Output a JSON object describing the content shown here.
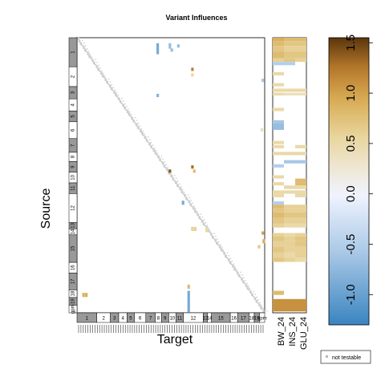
{
  "chart_data": {
    "type": "heatmap",
    "title": "Variant Influences",
    "xlabel": "Target",
    "ylabel": "Source",
    "chromosomes": [
      "1",
      "2",
      "3",
      "4",
      "5",
      "6",
      "7",
      "8",
      "9",
      "10",
      "11",
      "12",
      "13",
      "14",
      "15",
      "16",
      "17",
      "18",
      "19",
      "gpm"
    ],
    "x_chrom_labels": [
      "1",
      "2",
      "3",
      "4",
      "5",
      "6",
      "7",
      "8",
      "9",
      "10",
      "11",
      "12",
      "13",
      "14",
      "15",
      "16",
      "17",
      "18",
      "19",
      "gpm"
    ],
    "y_chrom_labels": [
      "1",
      "2",
      "3",
      "4",
      "5",
      "6",
      "7",
      "8",
      "9",
      "10",
      "11",
      "12",
      "13",
      "14",
      "15",
      "16",
      "17",
      "18",
      "19",
      "gpm"
    ],
    "chrom_fractions": [
      0.095,
      0.065,
      0.04,
      0.04,
      0.035,
      0.055,
      0.045,
      0.03,
      0.035,
      0.035,
      0.035,
      0.095,
      0.02,
      0.02,
      0.09,
      0.035,
      0.055,
      0.025,
      0.025,
      0.025
    ],
    "phenotypes": [
      "BW_24",
      "INS_24",
      "GLU_24"
    ],
    "color_scale": {
      "min": -1.3,
      "max": 1.55,
      "ticks": [
        -1.0,
        -0.5,
        0.0,
        0.5,
        1.0,
        1.5
      ],
      "tick_labels": [
        "-1.0",
        "-0.5",
        "0.0",
        "0.5",
        "1.0",
        "1.5"
      ],
      "neg_color": "#3a84c0",
      "mid_color": "#f2f4ff",
      "pos_color": "#5a360c"
    },
    "interactions": [
      {
        "source": 0.04,
        "target": 0.43,
        "value": -0.9,
        "h": 0.04
      },
      {
        "source": 0.03,
        "target": 0.495,
        "value": -0.7,
        "h": 0.02
      },
      {
        "source": 0.045,
        "target": 0.505,
        "value": -0.7,
        "h": 0.012
      },
      {
        "source": 0.03,
        "target": 0.54,
        "value": -0.7,
        "h": 0.012
      },
      {
        "source": 0.115,
        "target": 0.615,
        "value": 1.2,
        "h": 0.012
      },
      {
        "source": 0.135,
        "target": 0.615,
        "value": 0.55,
        "h": 0.012
      },
      {
        "source": 0.155,
        "target": 0.99,
        "value": -0.6,
        "h": 0.012
      },
      {
        "source": 0.21,
        "target": 0.43,
        "value": -0.8,
        "h": 0.012
      },
      {
        "source": 0.335,
        "target": 0.985,
        "value": 0.4,
        "h": 0.012
      },
      {
        "source": 0.485,
        "target": 0.495,
        "value": 1.4,
        "h": 0.012
      },
      {
        "source": 0.47,
        "target": 0.615,
        "value": 1.3,
        "h": 0.012
      },
      {
        "source": 0.485,
        "target": 0.625,
        "value": 0.8,
        "h": 0.012
      },
      {
        "source": 0.6,
        "target": 0.565,
        "value": -0.9,
        "h": 0.015
      },
      {
        "source": 0.695,
        "target": 0.615,
        "value": 0.6,
        "h": 0.015
      },
      {
        "source": 0.695,
        "target": 0.63,
        "value": 0.6,
        "h": 0.015
      },
      {
        "source": 0.7,
        "target": 0.69,
        "value": 0.5,
        "h": 0.015
      },
      {
        "source": 0.74,
        "target": 0.995,
        "value": 0.9,
        "h": 0.015
      },
      {
        "source": 0.71,
        "target": 0.99,
        "value": 1.0,
        "h": 0.012
      },
      {
        "source": 0.76,
        "target": 0.97,
        "value": 0.7,
        "h": 0.012
      },
      {
        "source": 0.935,
        "target": 0.035,
        "value": 0.9,
        "h": 0.015
      },
      {
        "source": 0.935,
        "target": 0.05,
        "value": 0.9,
        "h": 0.015
      },
      {
        "source": 0.905,
        "target": 0.595,
        "value": 0.8,
        "h": 0.015
      },
      {
        "source": 0.96,
        "target": 0.595,
        "value": -0.9,
        "h": 0.08
      }
    ],
    "main_effects": [
      {
        "y0": 0.0,
        "y1": 0.012,
        "values": [
          0.9,
          0.8,
          0.8
        ]
      },
      {
        "y0": 0.012,
        "y1": 0.03,
        "values": [
          0.8,
          0.7,
          0.7
        ]
      },
      {
        "y0": 0.03,
        "y1": 0.05,
        "values": [
          0.7,
          0.6,
          0.6
        ]
      },
      {
        "y0": 0.05,
        "y1": 0.075,
        "values": [
          0.8,
          0.7,
          0.7
        ]
      },
      {
        "y0": 0.075,
        "y1": 0.088,
        "values": [
          0.6,
          0.7,
          0.6
        ]
      },
      {
        "y0": 0.088,
        "y1": 0.1,
        "values": [
          -0.5,
          -0.5,
          null
        ]
      },
      {
        "y0": 0.125,
        "y1": 0.137,
        "values": [
          0.5,
          null,
          null
        ]
      },
      {
        "y0": 0.165,
        "y1": 0.177,
        "values": [
          0.5,
          null,
          null
        ]
      },
      {
        "y0": 0.185,
        "y1": 0.197,
        "values": [
          0.5,
          0.5,
          0.5
        ]
      },
      {
        "y0": 0.2,
        "y1": 0.21,
        "values": [
          0.5,
          0.4,
          0.4
        ]
      },
      {
        "y0": 0.255,
        "y1": 0.267,
        "values": [
          0.5,
          null,
          null
        ]
      },
      {
        "y0": 0.3,
        "y1": 0.312,
        "values": [
          -0.6,
          null,
          null
        ]
      },
      {
        "y0": 0.312,
        "y1": 0.335,
        "values": [
          -0.7,
          null,
          null
        ]
      },
      {
        "y0": 0.375,
        "y1": 0.387,
        "values": [
          0.5,
          null,
          null
        ]
      },
      {
        "y0": 0.39,
        "y1": 0.402,
        "values": [
          0.5,
          null,
          0.5
        ]
      },
      {
        "y0": 0.415,
        "y1": 0.427,
        "values": [
          0.5,
          0.5,
          0.5
        ]
      },
      {
        "y0": 0.445,
        "y1": 0.457,
        "values": [
          null,
          -0.6,
          -0.6
        ]
      },
      {
        "y0": 0.46,
        "y1": 0.472,
        "values": [
          -0.5,
          null,
          null
        ]
      },
      {
        "y0": 0.5,
        "y1": 0.512,
        "values": [
          0.5,
          null,
          null
        ]
      },
      {
        "y0": 0.512,
        "y1": 0.525,
        "values": [
          null,
          null,
          0.8
        ]
      },
      {
        "y0": 0.525,
        "y1": 0.537,
        "values": [
          0.5,
          null,
          0.8
        ]
      },
      {
        "y0": 0.537,
        "y1": 0.55,
        "values": [
          null,
          0.5,
          0.5
        ]
      },
      {
        "y0": 0.555,
        "y1": 0.567,
        "values": [
          0.5,
          0.5,
          0.5
        ]
      },
      {
        "y0": 0.567,
        "y1": 0.58,
        "values": [
          0.5,
          null,
          0.5
        ]
      },
      {
        "y0": 0.595,
        "y1": 0.607,
        "values": [
          -0.5,
          null,
          null
        ]
      },
      {
        "y0": 0.607,
        "y1": 0.62,
        "values": [
          0.8,
          0.6,
          0.6
        ]
      },
      {
        "y0": 0.62,
        "y1": 0.635,
        "values": [
          0.7,
          0.6,
          0.6
        ]
      },
      {
        "y0": 0.635,
        "y1": 0.655,
        "values": [
          0.8,
          0.7,
          0.7
        ]
      },
      {
        "y0": 0.655,
        "y1": 0.675,
        "values": [
          0.7,
          0.6,
          0.6
        ]
      },
      {
        "y0": 0.675,
        "y1": 0.69,
        "values": [
          0.6,
          0.5,
          0.5
        ]
      },
      {
        "y0": 0.71,
        "y1": 0.722,
        "values": [
          0.6,
          0.5,
          0.6
        ]
      },
      {
        "y0": 0.722,
        "y1": 0.74,
        "values": [
          0.7,
          0.6,
          0.7
        ]
      },
      {
        "y0": 0.74,
        "y1": 0.76,
        "values": [
          0.6,
          0.6,
          0.7
        ]
      },
      {
        "y0": 0.76,
        "y1": 0.78,
        "values": [
          0.7,
          0.6,
          0.6
        ]
      },
      {
        "y0": 0.78,
        "y1": 0.8,
        "values": [
          0.6,
          0.5,
          0.6
        ]
      },
      {
        "y0": 0.8,
        "y1": 0.815,
        "values": [
          0.7,
          0.6,
          0.5
        ]
      },
      {
        "y0": 0.92,
        "y1": 0.935,
        "values": [
          0.8,
          null,
          null
        ]
      },
      {
        "y0": 0.95,
        "y1": 0.995,
        "values": [
          1.1,
          1.1,
          1.1
        ]
      }
    ],
    "legend": {
      "label": "not testable",
      "placement": "bottom-right"
    }
  }
}
